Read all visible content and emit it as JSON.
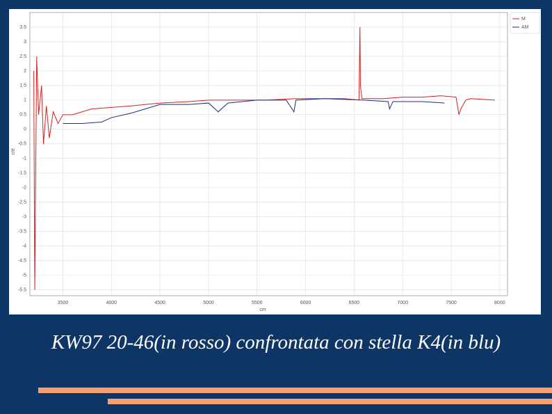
{
  "chart_data": {
    "type": "line",
    "xlabel": "cm",
    "ylabel": "c/d",
    "xlim": [
      3160,
      8080
    ],
    "ylim": [
      -5.7,
      4.0
    ],
    "xticks": [
      3500,
      4000,
      4500,
      5000,
      5500,
      6000,
      6500,
      7000,
      7500,
      8000
    ],
    "yticks": [
      3.5,
      3.0,
      2.5,
      2.0,
      1.5,
      1.0,
      0.5,
      0.0,
      -0.5,
      -1.0,
      -1.5,
      -2.0,
      -2.5,
      -3.0,
      -3.5,
      -4.0,
      -4.5,
      -5.0,
      -5.5
    ],
    "grid": true,
    "legend": "upper right",
    "series": [
      {
        "name": "M",
        "color": "#d42020",
        "x": [
          3200,
          3210,
          3230,
          3250,
          3280,
          3300,
          3330,
          3360,
          3400,
          3450,
          3500,
          3600,
          3700,
          3800,
          4000,
          4200,
          4500,
          4800,
          5000,
          5300,
          5600,
          5900,
          6100,
          6400,
          6550,
          6560,
          6565,
          6580,
          6800,
          7000,
          7200,
          7400,
          7550,
          7580,
          7600,
          7650,
          7700,
          7950
        ],
        "values": [
          2.0,
          -5.5,
          2.5,
          0.5,
          1.5,
          -0.5,
          0.8,
          -0.3,
          0.6,
          0.2,
          0.5,
          0.5,
          0.6,
          0.7,
          0.75,
          0.8,
          0.9,
          0.95,
          1.0,
          1.0,
          1.0,
          1.05,
          1.05,
          1.05,
          1.0,
          3.5,
          1.5,
          1.05,
          1.05,
          1.1,
          1.1,
          1.15,
          1.1,
          0.5,
          0.7,
          1.0,
          1.05,
          1.0
        ]
      },
      {
        "name": "AM",
        "color": "#1a2a8a",
        "x": [
          3500,
          3700,
          3900,
          4000,
          4200,
          4500,
          4800,
          5000,
          5100,
          5200,
          5500,
          5800,
          5880,
          5900,
          6200,
          6600,
          6850,
          6865,
          6900,
          7200,
          7430
        ],
        "values": [
          0.2,
          0.2,
          0.25,
          0.4,
          0.55,
          0.85,
          0.85,
          0.9,
          0.6,
          0.9,
          1.0,
          1.0,
          0.6,
          1.0,
          1.05,
          1.0,
          0.95,
          0.7,
          0.95,
          0.95,
          0.9
        ]
      }
    ]
  },
  "caption": "KW97 20-46(in rosso) confrontata con stella K4(in blu)"
}
